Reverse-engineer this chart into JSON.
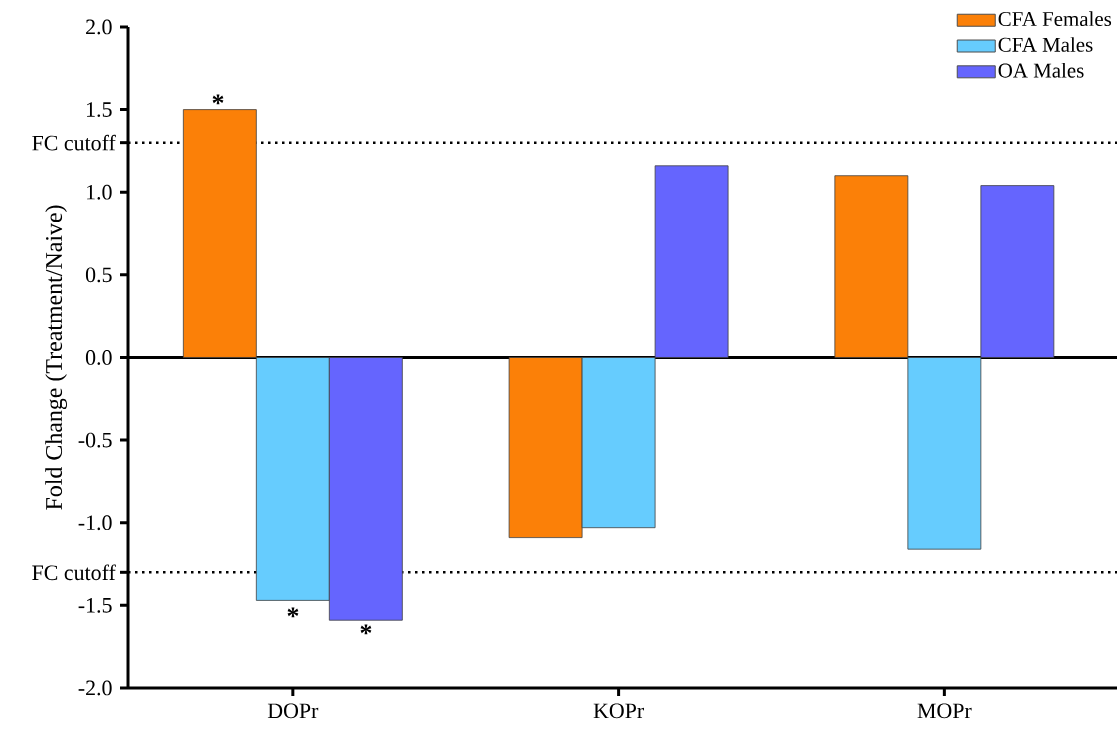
{
  "chart_data": {
    "type": "bar",
    "ylabel": "Fold Change (Treatment/Naive)",
    "categories": [
      "DOPr",
      "KOPr",
      "MOPr"
    ],
    "series": [
      {
        "name": "CFA Females",
        "color": "#fb8008",
        "values": [
          1.5,
          -1.09,
          1.1
        ]
      },
      {
        "name": "CFA Males",
        "color": "#66ccfe",
        "values": [
          -1.47,
          -1.03,
          -1.16
        ]
      },
      {
        "name": "OA Males",
        "color": "#6565fe",
        "values": [
          -1.59,
          1.16,
          1.04
        ]
      }
    ],
    "ylim": [
      -2,
      2
    ],
    "yticks": [
      {
        "value": -2,
        "label": "-2.0"
      },
      {
        "value": -1.5,
        "label": "-1.5"
      },
      {
        "value": -1,
        "label": "-1.0"
      },
      {
        "value": -0.5,
        "label": "-0.5"
      },
      {
        "value": 0,
        "label": "0.0"
      },
      {
        "value": 0.5,
        "label": "0.5"
      },
      {
        "value": 1,
        "label": "1.0"
      },
      {
        "value": 1.5,
        "label": "1.5"
      },
      {
        "value": 2,
        "label": "2.0"
      }
    ],
    "ref_lines": [
      {
        "axis": "y",
        "value": 1.3,
        "label": "FC cutoff",
        "line_style": "dotted"
      },
      {
        "axis": "y",
        "value": -1.3,
        "label": "FC cutoff",
        "line_style": "dotted"
      },
      {
        "axis": "y",
        "value": 0,
        "line_style": "solid"
      }
    ],
    "annotations": [
      "*",
      "*",
      "*"
    ],
    "legend": "top right",
    "grid": false
  }
}
